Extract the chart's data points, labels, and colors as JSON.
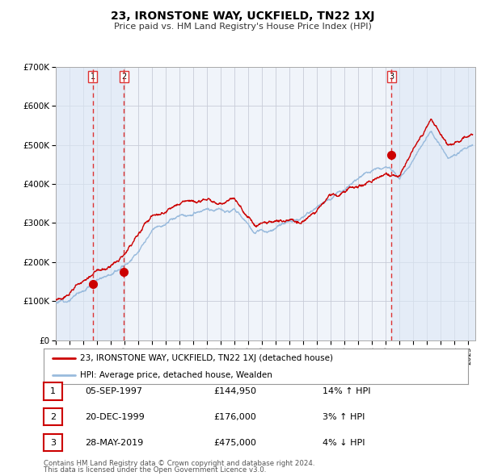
{
  "title": "23, IRONSTONE WAY, UCKFIELD, TN22 1XJ",
  "subtitle": "Price paid vs. HM Land Registry's House Price Index (HPI)",
  "legend_red": "23, IRONSTONE WAY, UCKFIELD, TN22 1XJ (detached house)",
  "legend_blue": "HPI: Average price, detached house, Wealden",
  "transactions": [
    {
      "num": 1,
      "date": "05-SEP-1997",
      "price": 144950,
      "pct": "14%",
      "dir": "↑",
      "year": 1997.68
    },
    {
      "num": 2,
      "date": "20-DEC-1999",
      "price": 176000,
      "pct": "3%",
      "dir": "↑",
      "year": 1999.96
    },
    {
      "num": 3,
      "date": "28-MAY-2019",
      "price": 475000,
      "pct": "4%",
      "dir": "↓",
      "year": 2019.41
    }
  ],
  "footer1": "Contains HM Land Registry data © Crown copyright and database right 2024.",
  "footer2": "This data is licensed under the Open Government Licence v3.0.",
  "xlim": [
    1995.0,
    2025.5
  ],
  "ylim": [
    0,
    700000
  ],
  "yticks": [
    0,
    100000,
    200000,
    300000,
    400000,
    500000,
    600000,
    700000
  ],
  "ytick_labels": [
    "£0",
    "£100K",
    "£200K",
    "£300K",
    "£400K",
    "£500K",
    "£600K",
    "£700K"
  ],
  "bg_color": "#ffffff",
  "plot_bg_color": "#f0f4fa",
  "grid_color": "#c8ccd8",
  "red_color": "#cc0000",
  "blue_color": "#99bbdd",
  "vline_color": "#dd3333",
  "shade_color": "#dde8f5",
  "marker_color": "#cc0000"
}
